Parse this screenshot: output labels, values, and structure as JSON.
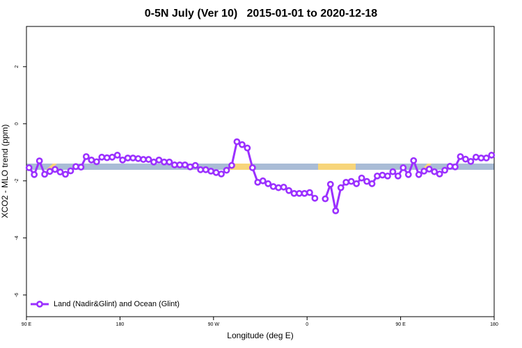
{
  "chart_data": {
    "type": "line",
    "title": "0-5N July (Ver 10)   2015-01-01 to 2020-12-18",
    "x_label": "Longitude (deg E)",
    "y_label": "XCO2 - MLO trend (ppm)",
    "x": [
      92.5,
      97.5,
      102.5,
      107.5,
      112.5,
      117.5,
      122.5,
      127.5,
      132.5,
      137.5,
      142.5,
      147.5,
      152.5,
      157.5,
      162.5,
      167.5,
      172.5,
      177.5,
      182.5,
      187.5,
      192.5,
      197.5,
      202.5,
      207.5,
      212.5,
      217.5,
      222.5,
      227.5,
      232.5,
      237.5,
      242.5,
      247.5,
      252.5,
      257.5,
      262.5,
      267.5,
      272.5,
      277.5,
      282.5,
      287.5,
      292.5,
      297.5,
      302.5,
      307.5,
      312.5,
      317.5,
      322.5,
      327.5,
      332.5,
      337.5,
      342.5,
      347.5,
      352.5,
      357.5,
      362.5,
      367.5,
      372.5,
      377.5,
      382.5,
      387.5,
      392.5,
      397.5,
      402.5,
      407.5,
      412.5,
      417.5,
      422.5,
      427.5,
      432.5,
      437.5,
      442.5,
      447.5,
      452.5,
      457.5,
      462.5,
      467.5,
      472.5,
      477.5,
      482.5,
      487.5,
      492.5,
      497.5,
      502.5,
      507.5,
      512.5,
      517.5,
      522.5,
      527.5,
      532.5,
      537.5
    ],
    "series": [
      {
        "name": "Land (Nadir&Glint) and Ocean (Glint)",
        "color": "#9b30ff",
        "values": [
          -1.54,
          -1.78,
          -1.3,
          -1.77,
          -1.67,
          -1.6,
          -1.69,
          -1.77,
          -1.65,
          -1.5,
          -1.52,
          -1.15,
          -1.27,
          -1.33,
          -1.17,
          -1.19,
          -1.17,
          -1.1,
          -1.27,
          -1.2,
          -1.2,
          -1.22,
          -1.25,
          -1.25,
          -1.34,
          -1.27,
          -1.34,
          -1.34,
          -1.44,
          -1.44,
          -1.44,
          -1.51,
          -1.46,
          -1.61,
          -1.61,
          -1.66,
          -1.71,
          -1.76,
          -1.63,
          -1.46,
          -0.63,
          -0.73,
          -0.85,
          -1.54,
          -2.05,
          -2.0,
          -2.1,
          -2.2,
          -2.24,
          -2.22,
          -2.34,
          -2.44,
          -2.44,
          -2.44,
          -2.41,
          -2.61,
          null,
          -2.63,
          -2.12,
          -3.05,
          -2.24,
          -2.05,
          -2.02,
          -2.1,
          -1.9,
          -2.02,
          -2.1,
          -1.83,
          -1.8,
          -1.83,
          -1.68,
          -1.83,
          -1.54,
          -1.78,
          -1.29,
          -1.78,
          -1.66,
          -1.59,
          -1.68,
          -1.76,
          -1.63,
          -1.49,
          -1.51,
          -1.15,
          -1.24,
          -1.32,
          -1.17,
          -1.2,
          -1.2,
          -1.1
        ]
      }
    ],
    "xlim": [
      90,
      540
    ],
    "xticks": [
      {
        "value": 90,
        "label": "90 E"
      },
      180,
      {
        "value": 270,
        "label": "90 W"
      },
      {
        "value": 360,
        "label": "0"
      },
      {
        "value": 450,
        "label": "90 E"
      },
      {
        "value": 540,
        "label": "180"
      }
    ],
    "ylim": [
      -6.76,
      3.41
    ],
    "yticks": [
      2,
      0,
      -2,
      -4,
      -6
    ],
    "legend": "lower left"
  }
}
